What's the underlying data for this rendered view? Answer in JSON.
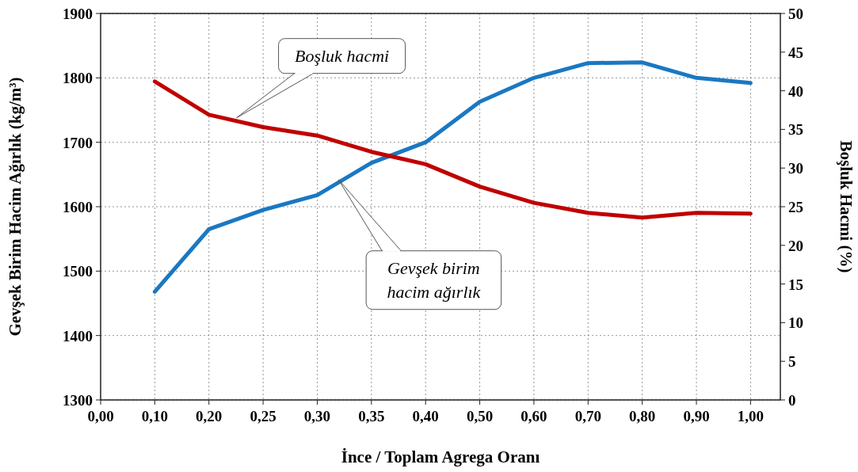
{
  "chart_data": {
    "type": "line",
    "xlabel": "İnce / Toplam Agrega Oranı",
    "ylabel": "Gevşek Birim Hacim Ağırlık (kg/m³)",
    "y2label": "Boşluk Hacmi (%)",
    "categories": [
      "0,00",
      "0,10",
      "0,20",
      "0,25",
      "0,30",
      "0,35",
      "0,40",
      "0,50",
      "0,60",
      "0,70",
      "0,80",
      "0,90",
      "1,00"
    ],
    "ylim": [
      1300,
      1900
    ],
    "yticks": [
      1300,
      1400,
      1500,
      1600,
      1700,
      1800,
      1900
    ],
    "y2lim": [
      0,
      50
    ],
    "y2ticks": [
      0,
      5,
      10,
      15,
      20,
      25,
      30,
      35,
      40,
      45,
      50
    ],
    "grid": true,
    "marker": "none",
    "line_style": "solid",
    "series": [
      {
        "color": "#1a78c2",
        "values": [
          null,
          1468,
          1565,
          1595,
          1618,
          1668,
          1700,
          1763,
          1800,
          1823,
          1824,
          1800,
          1792
        ]
      },
      {
        "color": "#c00000",
        "axis": "y2",
        "values": [
          null,
          41.2,
          36.9,
          35.3,
          34.2,
          32.1,
          30.5,
          27.6,
          25.5,
          24.2,
          23.6,
          24.2,
          24.1
        ]
      }
    ],
    "annotations": [
      "Boşluk hacmi",
      "Gevşek birim hacim ağırlık"
    ]
  }
}
